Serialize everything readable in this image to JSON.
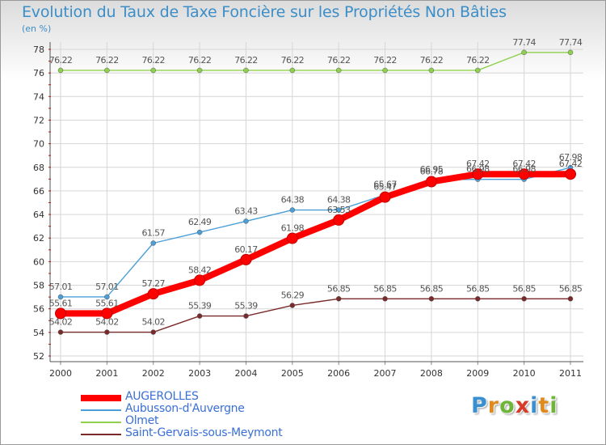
{
  "header": {
    "title": "Evolution du Taux de Taxe Foncière sur les Propriétés Non Bâties",
    "subtitle": "(en %)"
  },
  "logo": {
    "letters": [
      "P",
      "r",
      "o",
      "x",
      "i",
      "t",
      "i"
    ],
    "colors": [
      "#3a8fd0",
      "#e08a1e",
      "#6fb53a",
      "#d83a2a",
      "#3a8fd0",
      "#e08a1e",
      "#6fb53a"
    ]
  },
  "chart_data": {
    "type": "line",
    "title": "Evolution du Taux de Taxe Foncière sur les Propriétés Non Bâties",
    "ylabel": "(en %)",
    "xlabel": "",
    "x": [
      "2000",
      "2001",
      "2002",
      "2003",
      "2004",
      "2005",
      "2006",
      "2007",
      "2008",
      "2009",
      "2010",
      "2011"
    ],
    "ylim": [
      52,
      78
    ],
    "yticks": [
      52,
      54,
      56,
      58,
      60,
      62,
      64,
      66,
      68,
      70,
      72,
      74,
      76,
      78
    ],
    "grid": true,
    "legend_position": "bottom-left",
    "series": [
      {
        "name": "AUGEROLLES",
        "color": "#ff0000",
        "values": [
          55.61,
          55.61,
          57.27,
          58.42,
          60.17,
          61.98,
          63.53,
          65.47,
          66.78,
          67.42,
          67.42,
          67.42
        ],
        "labels": [
          "55.61",
          "55.61",
          "57.27",
          "58.42",
          "60.17",
          "61.98",
          "63.53",
          "65.47",
          "66.78",
          "67.42",
          "67.42",
          "67.42"
        ]
      },
      {
        "name": "Aubusson-d'Auvergne",
        "color": "#4a9fd8",
        "values": [
          57.01,
          57.01,
          61.57,
          62.49,
          63.43,
          64.38,
          64.38,
          65.67,
          66.95,
          66.98,
          66.98,
          67.98
        ],
        "labels": [
          "57.01",
          "57.01",
          "61.57",
          "62.49",
          "63.43",
          "64.38",
          "64.38",
          "65.67",
          "66.95",
          "66.98",
          "66.98",
          "67.98"
        ]
      },
      {
        "name": "Olmet",
        "color": "#8fd14f",
        "values": [
          76.22,
          76.22,
          76.22,
          76.22,
          76.22,
          76.22,
          76.22,
          76.22,
          76.22,
          76.22,
          77.74,
          77.74
        ],
        "labels": [
          "76.22",
          "76.22",
          "76.22",
          "76.22",
          "76.22",
          "76.22",
          "76.22",
          "76.22",
          "76.22",
          "76.22",
          "77.74",
          "77.74"
        ]
      },
      {
        "name": "Saint-Gervais-sous-Meymont",
        "color": "#7a2a2a",
        "values": [
          54.02,
          54.02,
          54.02,
          55.39,
          55.39,
          56.29,
          56.85,
          56.85,
          56.85,
          56.85,
          56.85,
          56.85
        ],
        "labels": [
          "54.02",
          "54.02",
          "54.02",
          "55.39",
          "55.39",
          "56.29",
          "56.85",
          "56.85",
          "56.85",
          "56.85",
          "56.85",
          "56.85"
        ]
      }
    ]
  }
}
